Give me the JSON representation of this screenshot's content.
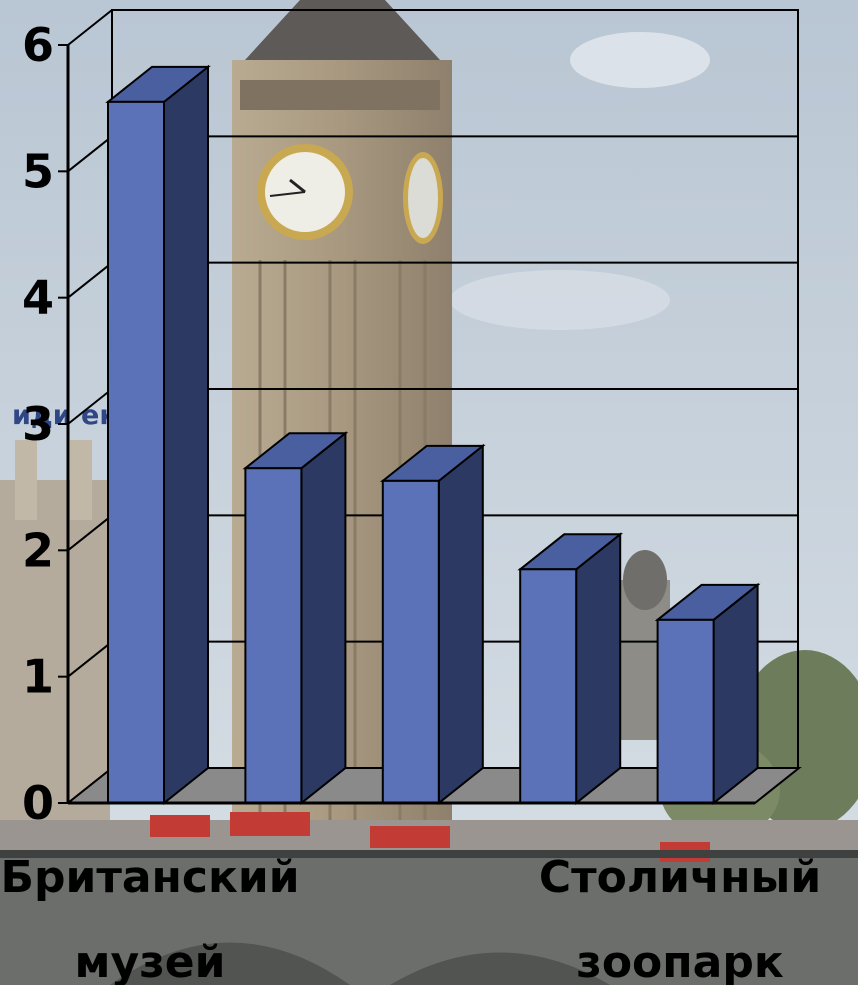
{
  "overlay_text": "иди        ек;",
  "colors": {
    "bar_front": "#5b72b8",
    "bar_side": "#2c3a63",
    "bar_top": "#4a5fa0",
    "floor": "#8a8a8a",
    "grid": "#000000",
    "sky": "#c9d4df"
  },
  "chart_data": {
    "type": "bar",
    "style": "3d",
    "categories": [
      "Британский музей",
      "",
      "",
      "",
      "Столичный зоопарк"
    ],
    "category_label_lines": [
      [
        "Британский",
        "музей"
      ],
      [
        "Столичный",
        "зоопарк"
      ]
    ],
    "values": [
      5.55,
      2.65,
      2.55,
      1.85,
      1.45
    ],
    "ylim": [
      0,
      6
    ],
    "yticks": [
      "0",
      "1",
      "2",
      "3",
      "4",
      "5",
      "6"
    ],
    "grid": true,
    "title": "",
    "xlabel": "",
    "ylabel": ""
  }
}
